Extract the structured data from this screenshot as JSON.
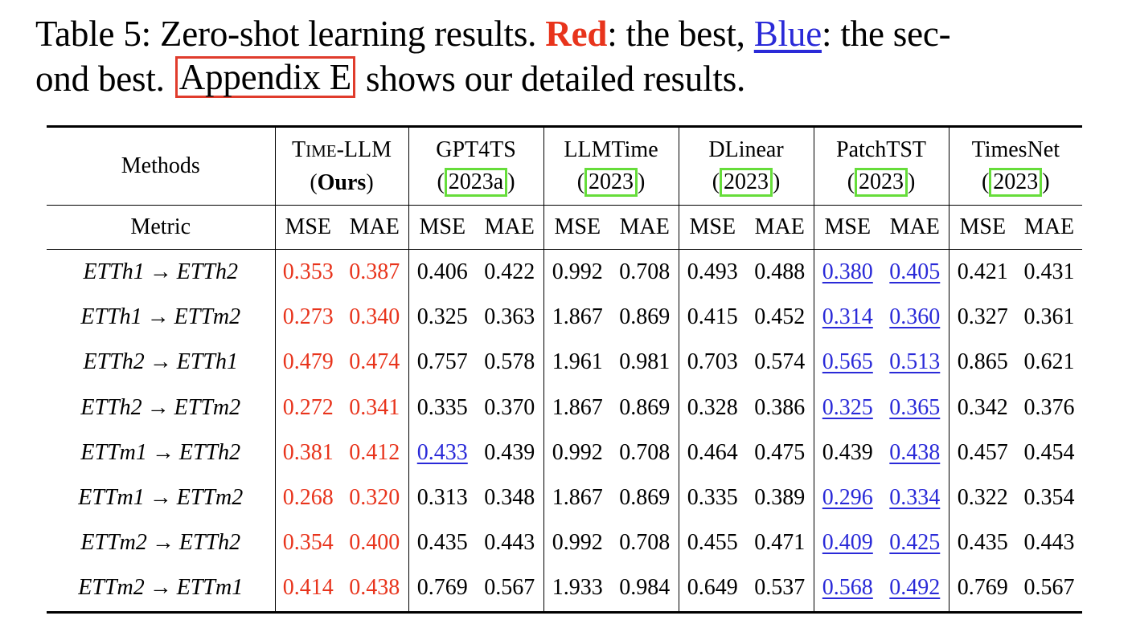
{
  "caption": {
    "prefix": "Table 5: Zero-shot learning results.",
    "red_word": "Red",
    "after_red": ": the best,",
    "blue_word": "Blue",
    "after_blue": ": the sec-",
    "line2_start": "ond best.",
    "appendix_ref": "Appendix E",
    "line2_end": "shows our detailed results."
  },
  "table": {
    "methods_label": "Methods",
    "metric_label": "Metric",
    "methods": [
      {
        "name_first": "T",
        "name_rest": "IME",
        "name_suffix": "-LLM",
        "sub_open": "(",
        "sub": "Ours",
        "sub_close": ")"
      },
      {
        "name": "GPT4TS",
        "cite_open": "(",
        "cite": "2023a",
        "cite_close": ")"
      },
      {
        "name": "LLMTime",
        "cite_open": "(",
        "cite": "2023",
        "cite_close": ")"
      },
      {
        "name": "DLinear",
        "cite_open": "(",
        "cite": "2023",
        "cite_close": ")"
      },
      {
        "name": "PatchTST",
        "cite_open": "(",
        "cite": "2023",
        "cite_close": ")"
      },
      {
        "name": "TimesNet",
        "cite_open": "(",
        "cite": "2023",
        "cite_close": ")"
      }
    ],
    "metrics": [
      "MSE",
      "MAE",
      "MSE",
      "MAE",
      "MSE",
      "MAE",
      "MSE",
      "MAE",
      "MSE",
      "MAE",
      "MSE",
      "MAE"
    ],
    "arrow": "→",
    "rows": [
      {
        "src": "ETTh1",
        "dst": "ETTh2",
        "values": [
          "0.353",
          "0.387",
          "0.406",
          "0.422",
          "0.992",
          "0.708",
          "0.493",
          "0.488",
          "0.380",
          "0.405",
          "0.421",
          "0.431"
        ]
      },
      {
        "src": "ETTh1",
        "dst": "ETTm2",
        "values": [
          "0.273",
          "0.340",
          "0.325",
          "0.363",
          "1.867",
          "0.869",
          "0.415",
          "0.452",
          "0.314",
          "0.360",
          "0.327",
          "0.361"
        ]
      },
      {
        "src": "ETTh2",
        "dst": "ETTh1",
        "values": [
          "0.479",
          "0.474",
          "0.757",
          "0.578",
          "1.961",
          "0.981",
          "0.703",
          "0.574",
          "0.565",
          "0.513",
          "0.865",
          "0.621"
        ]
      },
      {
        "src": "ETTh2",
        "dst": "ETTm2",
        "values": [
          "0.272",
          "0.341",
          "0.335",
          "0.370",
          "1.867",
          "0.869",
          "0.328",
          "0.386",
          "0.325",
          "0.365",
          "0.342",
          "0.376"
        ]
      },
      {
        "src": "ETTm1",
        "dst": "ETTh2",
        "values": [
          "0.381",
          "0.412",
          "0.433",
          "0.439",
          "0.992",
          "0.708",
          "0.464",
          "0.475",
          "0.439",
          "0.438",
          "0.457",
          "0.454"
        ]
      },
      {
        "src": "ETTm1",
        "dst": "ETTm2",
        "values": [
          "0.268",
          "0.320",
          "0.313",
          "0.348",
          "1.867",
          "0.869",
          "0.335",
          "0.389",
          "0.296",
          "0.334",
          "0.322",
          "0.354"
        ]
      },
      {
        "src": "ETTm2",
        "dst": "ETTh2",
        "values": [
          "0.354",
          "0.400",
          "0.435",
          "0.443",
          "0.992",
          "0.708",
          "0.455",
          "0.471",
          "0.409",
          "0.425",
          "0.435",
          "0.443"
        ]
      },
      {
        "src": "ETTm2",
        "dst": "ETTm1",
        "values": [
          "0.414",
          "0.438",
          "0.769",
          "0.567",
          "1.933",
          "0.984",
          "0.649",
          "0.537",
          "0.568",
          "0.492",
          "0.769",
          "0.567"
        ]
      }
    ],
    "highlight": {
      "best": [
        [
          0,
          1
        ],
        [
          0,
          1
        ],
        [
          0,
          1
        ],
        [
          0,
          1
        ],
        [
          0,
          1
        ],
        [
          0,
          1
        ],
        [
          0,
          1
        ],
        [
          0,
          1
        ]
      ],
      "second": [
        [
          8,
          9
        ],
        [
          8,
          9
        ],
        [
          8,
          9
        ],
        [
          8,
          9
        ],
        [
          2,
          9
        ],
        [
          8,
          9
        ],
        [
          8,
          9
        ],
        [
          8,
          9
        ]
      ]
    },
    "colors": {
      "best": "#e8341c",
      "second": "#2a2ad8",
      "appendix_box": "#e03c2c",
      "cite_box": "#66dd3a"
    }
  }
}
